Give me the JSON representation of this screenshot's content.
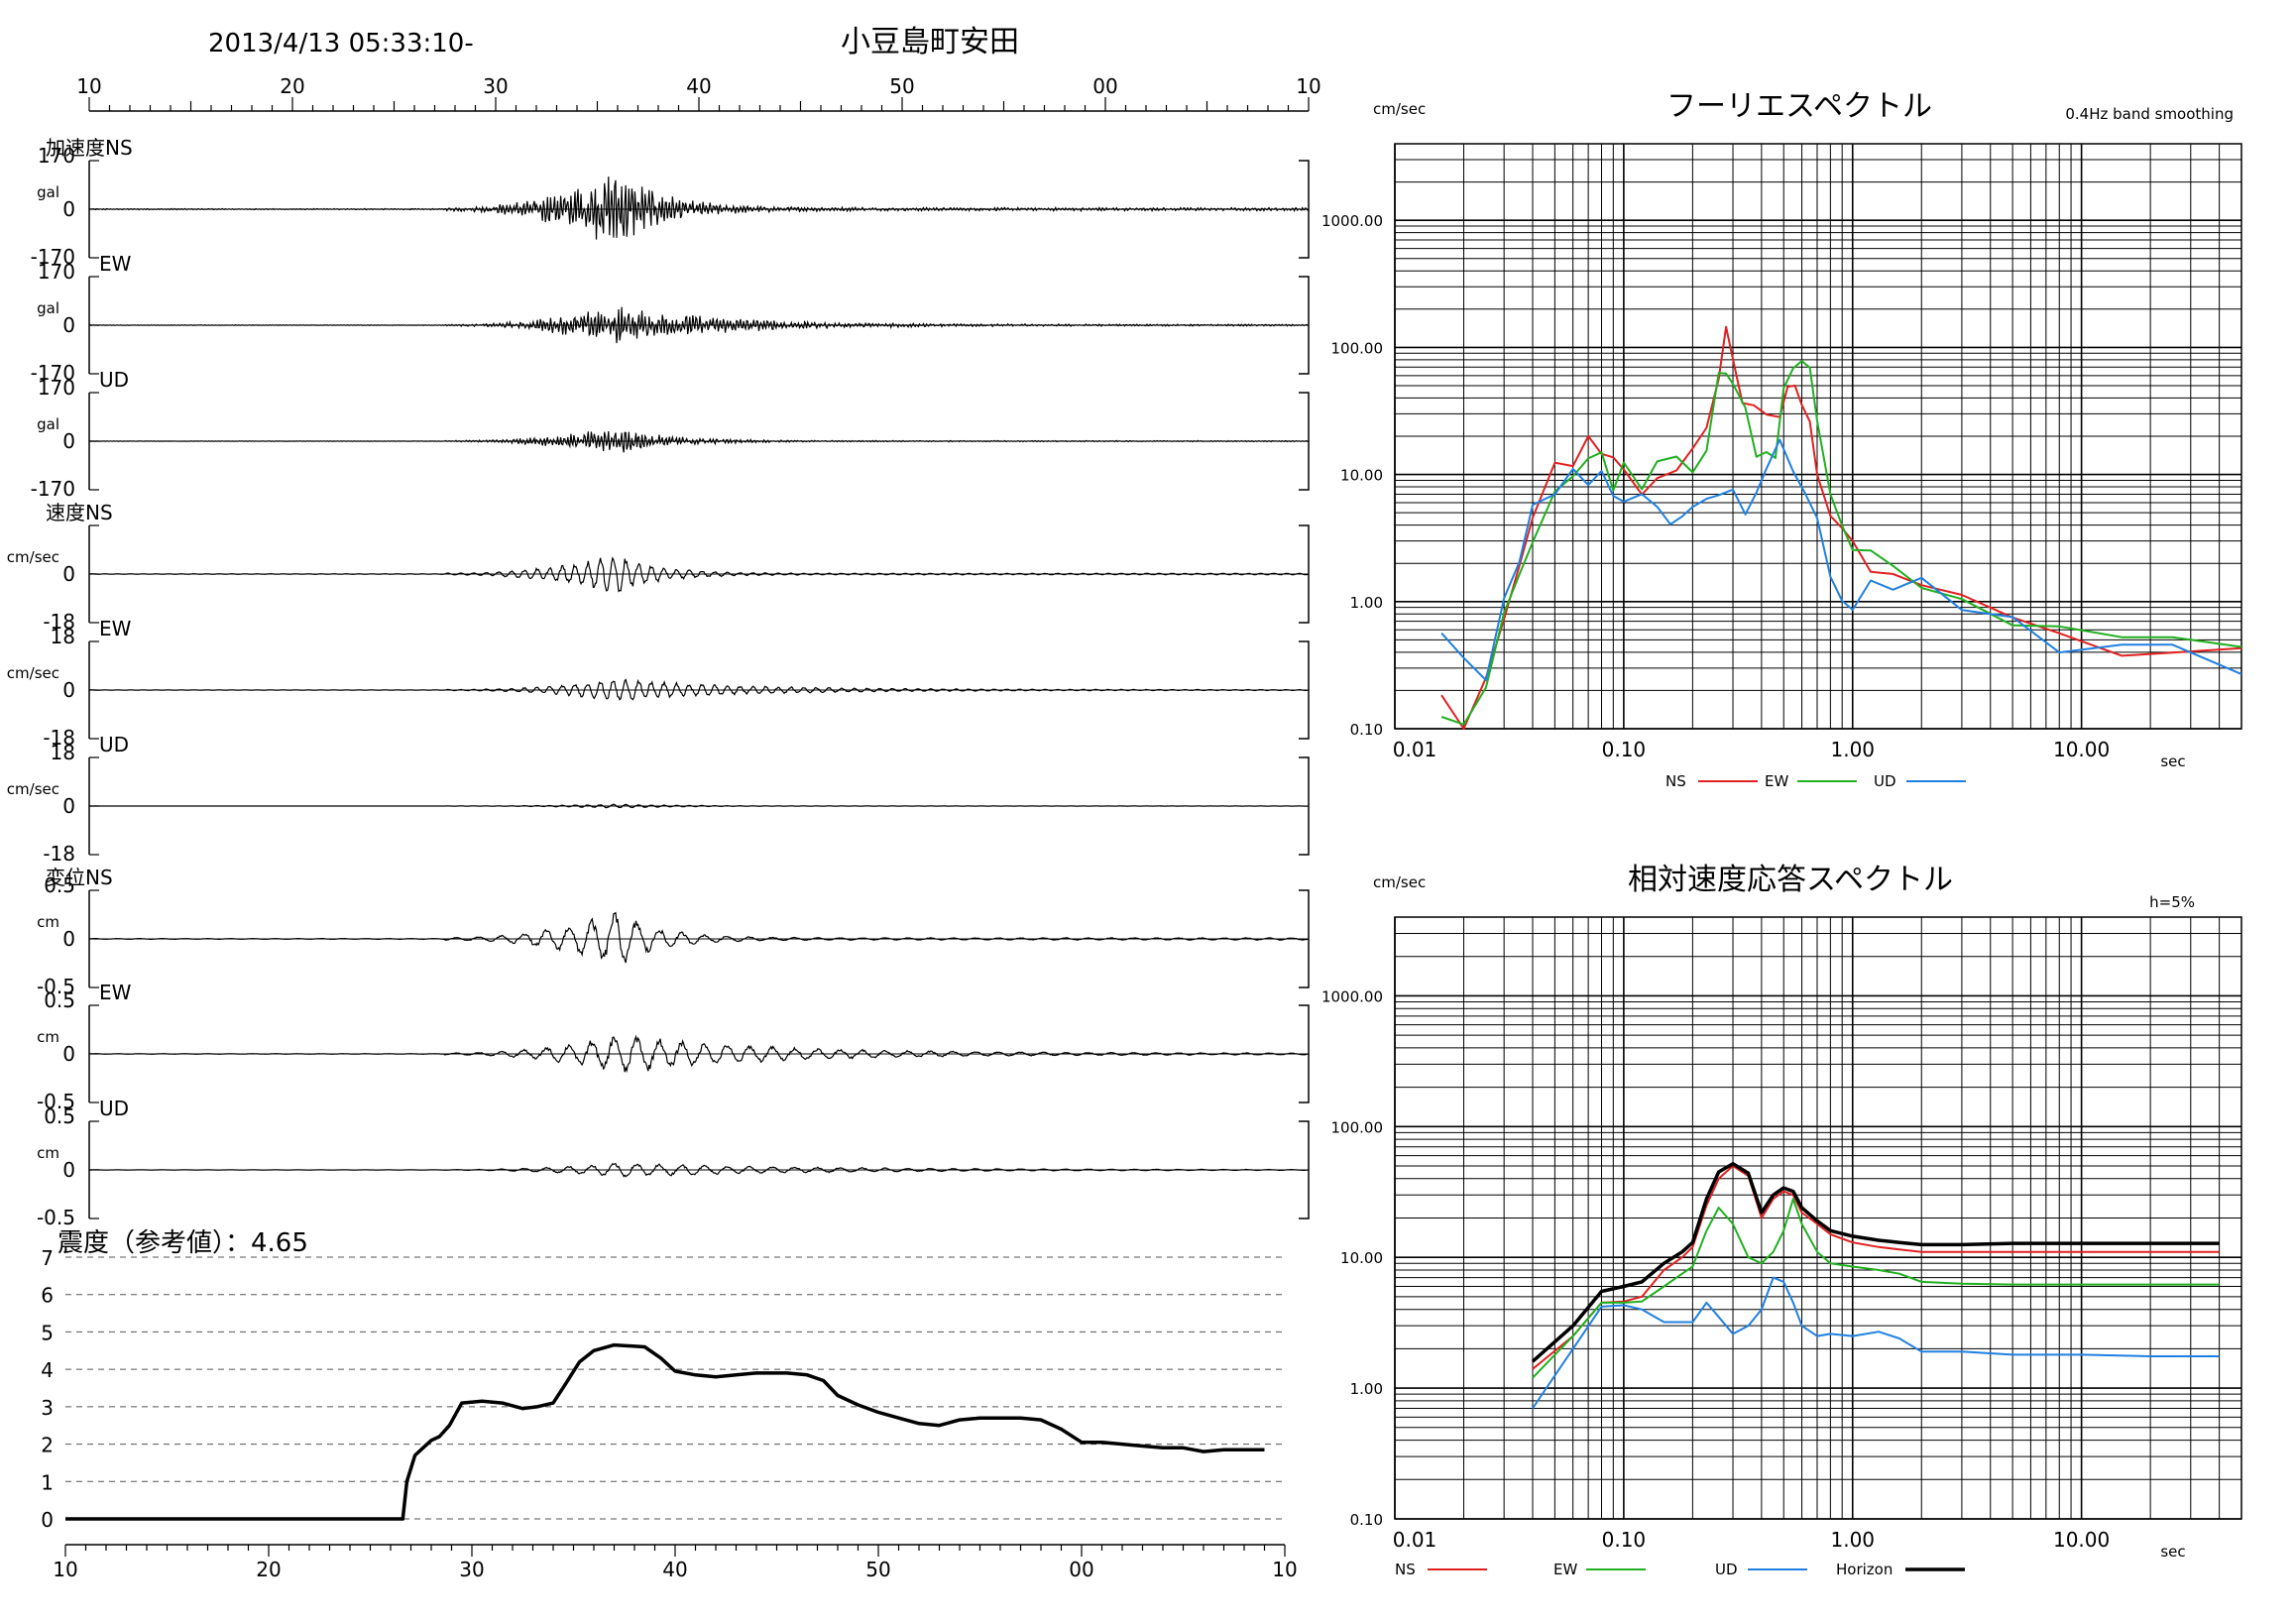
{
  "header": {
    "datetime": "2013/4/13 05:33:10-",
    "station": "小豆島町安田"
  },
  "chart_data": [
    {
      "type": "line",
      "id": "waveforms",
      "time_ticks": [
        "10",
        "20",
        "30",
        "40",
        "50",
        "00",
        "10"
      ],
      "time_axis_seconds": [
        10,
        70
      ],
      "groups": [
        {
          "label": "加速度",
          "unit": "gal",
          "panels": [
            {
              "component": "NS",
              "label": "加速度NS",
              "ymax": "170",
              "ymid": "0",
              "ymin": "-170",
              "peak_fraction": 0.72,
              "decay": 2.2
            },
            {
              "component": "EW",
              "label": "EW",
              "ymax": "170",
              "ymid": "0",
              "ymin": "-170",
              "peak_fraction": 0.36,
              "decay": 5.0
            },
            {
              "component": "UD",
              "label": "UD",
              "ymax": "170",
              "ymid": "0",
              "ymin": "-170",
              "peak_fraction": 0.25,
              "decay": 2.5
            }
          ]
        },
        {
          "label": "速度",
          "unit": "cm/sec",
          "panels": [
            {
              "component": "NS",
              "label": "速度NS",
              "ymax": "",
              "ymid": "0",
              "ymin": "-18",
              "peak_fraction": 0.5,
              "decay": 2.0
            },
            {
              "component": "EW",
              "label": "EW",
              "ymax": "18",
              "ymid": "0",
              "ymin": "-18",
              "peak_fraction": 0.28,
              "decay": 6.0
            },
            {
              "component": "UD",
              "label": "UD",
              "ymax": "18",
              "ymid": "0",
              "ymin": "-18",
              "peak_fraction": 0.05,
              "decay": 3.0
            }
          ]
        },
        {
          "label": "変位",
          "unit": "cm",
          "panels": [
            {
              "component": "NS",
              "label": "変位NS",
              "ymax": "0.5",
              "ymid": "0",
              "ymin": "-0.5",
              "peak_fraction": 0.7,
              "decay": 2.0
            },
            {
              "component": "EW",
              "label": "EW",
              "ymax": "0.5",
              "ymid": "0",
              "ymin": "-0.5",
              "peak_fraction": 0.5,
              "decay": 7.0
            },
            {
              "component": "UD",
              "label": "UD",
              "ymax": "0.5",
              "ymid": "0",
              "ymin": "-0.5",
              "peak_fraction": 0.18,
              "decay": 9.0
            }
          ]
        }
      ]
    },
    {
      "type": "line",
      "id": "seismic-intensity",
      "title": "震度（参考値）：4.65",
      "x_ticks": [
        "10",
        "20",
        "30",
        "40",
        "50",
        "00",
        "10"
      ],
      "xlim": [
        10,
        70
      ],
      "ylim": [
        0,
        7
      ],
      "y_ticks": [
        "0",
        "1",
        "2",
        "3",
        "4",
        "5",
        "6",
        "7"
      ],
      "grid": "dashed-horizontal",
      "series": [
        {
          "x": [
            10,
            26.6,
            26.8,
            27.2,
            27.6,
            28.0,
            28.4,
            28.9,
            29.5,
            30.5,
            31.5,
            32.5,
            33.2,
            34.0,
            34.6,
            35.3,
            36.0,
            37.0,
            38.5,
            39.3,
            40.0,
            41.0,
            42.0,
            43.0,
            44.0,
            45.5,
            46.5,
            47.3,
            48.0,
            49.0,
            50.0,
            51.0,
            52.0,
            53.0,
            54.0,
            55.0,
            56.0,
            57.0,
            58.0,
            59.0,
            60.0,
            61.0,
            62.0,
            63.0,
            64.0,
            65.0,
            66.0,
            67.0,
            68.0,
            69.0
          ],
          "y": [
            0,
            0,
            1.0,
            1.7,
            1.9,
            2.1,
            2.2,
            2.5,
            3.1,
            3.15,
            3.1,
            2.95,
            3.0,
            3.1,
            3.6,
            4.2,
            4.5,
            4.65,
            4.6,
            4.3,
            3.95,
            3.85,
            3.8,
            3.85,
            3.9,
            3.9,
            3.85,
            3.7,
            3.3,
            3.05,
            2.85,
            2.7,
            2.55,
            2.5,
            2.65,
            2.7,
            2.7,
            2.7,
            2.65,
            2.4,
            2.05,
            2.05,
            2.0,
            1.95,
            1.9,
            1.9,
            1.8,
            1.85,
            1.85,
            1.85
          ]
        }
      ]
    },
    {
      "type": "line",
      "id": "fourier-spectrum",
      "title": "フーリエスペクトル",
      "subtitle": "0.4Hz band smoothing",
      "ylabel": "cm/sec",
      "xlabel": "sec",
      "log_x": true,
      "log_y": true,
      "xlim": [
        0.01,
        50
      ],
      "ylim": [
        0.1,
        4000
      ],
      "x_tick_labels": [
        "0.01",
        "0.10",
        "1.00",
        "10.00"
      ],
      "y_tick_labels": [
        "0.10",
        "1.00",
        "10.00",
        "100.00",
        "1000.00"
      ],
      "grid": true,
      "legend": [
        {
          "name": "NS",
          "color": "#e02020"
        },
        {
          "name": "EW",
          "color": "#20b020"
        },
        {
          "name": "UD",
          "color": "#2080e0"
        }
      ],
      "series": [
        {
          "name": "NS",
          "color": "#e02020",
          "x": [
            0.016,
            0.02,
            0.025,
            0.03,
            0.035,
            0.04,
            0.05,
            0.06,
            0.07,
            0.08,
            0.09,
            0.1,
            0.12,
            0.14,
            0.17,
            0.2,
            0.23,
            0.26,
            0.28,
            0.3,
            0.33,
            0.37,
            0.42,
            0.48,
            0.52,
            0.56,
            0.6,
            0.65,
            0.7,
            0.8,
            0.9,
            1.0,
            1.2,
            1.5,
            2.0,
            3.0,
            5.0,
            8.0,
            15.0,
            25.0,
            50.0
          ],
          "y": [
            0.15,
            0.12,
            0.2,
            0.8,
            2.0,
            5.0,
            10.0,
            14.0,
            16.0,
            14.0,
            12.0,
            11.0,
            9.0,
            9.5,
            9.0,
            14.0,
            30.0,
            70.0,
            115.0,
            95.0,
            50.0,
            32.0,
            25.0,
            35.0,
            45.0,
            48.0,
            40.0,
            22.0,
            10.0,
            5.0,
            3.0,
            2.5,
            2.0,
            1.8,
            1.3,
            0.9,
            0.6,
            0.45,
            0.38,
            0.4,
            0.42
          ]
        },
        {
          "name": "EW",
          "color": "#20b020",
          "x": [
            0.016,
            0.02,
            0.025,
            0.03,
            0.035,
            0.04,
            0.05,
            0.06,
            0.07,
            0.08,
            0.09,
            0.1,
            0.12,
            0.14,
            0.17,
            0.2,
            0.23,
            0.26,
            0.28,
            0.3,
            0.34,
            0.38,
            0.42,
            0.46,
            0.5,
            0.55,
            0.6,
            0.65,
            0.7,
            0.8,
            0.9,
            1.0,
            1.2,
            1.5,
            2.0,
            3.0,
            5.0,
            8.0,
            15.0,
            25.0,
            50.0
          ],
          "y": [
            0.15,
            0.13,
            0.25,
            0.9,
            1.8,
            4.0,
            8.0,
            12.0,
            14.0,
            12.0,
            10.0,
            10.0,
            9.0,
            12.0,
            18.0,
            10.0,
            20.0,
            50.0,
            65.0,
            55.0,
            28.0,
            18.0,
            15.0,
            18.0,
            40.0,
            80.0,
            90.0,
            55.0,
            22.0,
            8.0,
            4.0,
            2.8,
            2.0,
            1.6,
            1.5,
            1.0,
            0.65,
            0.52,
            0.48,
            0.46,
            0.44
          ]
        },
        {
          "name": "UD",
          "color": "#2080e0",
          "x": [
            0.016,
            0.02,
            0.025,
            0.03,
            0.035,
            0.04,
            0.05,
            0.06,
            0.07,
            0.08,
            0.09,
            0.1,
            0.12,
            0.14,
            0.16,
            0.18,
            0.2,
            0.23,
            0.26,
            0.3,
            0.34,
            0.38,
            0.42,
            0.48,
            0.55,
            0.62,
            0.7,
            0.8,
            0.9,
            1.0,
            1.2,
            1.5,
            2.0,
            3.0,
            5.0,
            8.0,
            15.0,
            25.0,
            50.0
          ],
          "y": [
            0.7,
            0.3,
            0.25,
            1.0,
            2.5,
            5.0,
            7.0,
            10.0,
            11.0,
            10.0,
            8.0,
            7.0,
            6.5,
            5.5,
            4.8,
            4.5,
            5.0,
            6.5,
            7.0,
            6.0,
            5.0,
            9.0,
            10.0,
            15.0,
            12.0,
            7.0,
            4.0,
            2.0,
            1.2,
            1.0,
            1.2,
            1.5,
            1.3,
            0.9,
            0.6,
            0.45,
            0.38,
            0.37,
            0.37
          ]
        }
      ]
    },
    {
      "type": "line",
      "id": "velocity-response-spectrum",
      "title": "相対速度応答スペクトル",
      "annotation": "h=5%",
      "ylabel": "cm/sec",
      "xlabel": "sec",
      "log_x": true,
      "log_y": true,
      "xlim": [
        0.01,
        50
      ],
      "ylim": [
        0.1,
        4000
      ],
      "x_tick_labels": [
        "0.01",
        "0.10",
        "1.00",
        "10.00"
      ],
      "y_tick_labels": [
        "0.10",
        "1.00",
        "10.00",
        "100.00",
        "1000.00"
      ],
      "grid": true,
      "legend": [
        {
          "name": "NS",
          "color": "#e02020"
        },
        {
          "name": "EW",
          "color": "#20b020"
        },
        {
          "name": "UD",
          "color": "#2080e0"
        },
        {
          "name": "Horizon",
          "color": "#000000"
        }
      ],
      "series": [
        {
          "name": "NS",
          "color": "#e02020",
          "x": [
            0.04,
            0.06,
            0.08,
            0.1,
            0.12,
            0.15,
            0.18,
            0.2,
            0.23,
            0.26,
            0.3,
            0.35,
            0.4,
            0.45,
            0.5,
            0.55,
            0.6,
            0.7,
            0.8,
            1.0,
            1.3,
            1.6,
            2.0,
            3.0,
            5.0,
            10.0,
            20.0,
            40.0
          ],
          "y": [
            1.4,
            2.5,
            4.5,
            4.6,
            5.0,
            8.0,
            10.0,
            12.0,
            25.0,
            40.0,
            50.0,
            42.0,
            20.0,
            28.0,
            32.0,
            30.0,
            22.0,
            18.0,
            15.0,
            13.0,
            12.0,
            11.5,
            11.0,
            11.0,
            11.0,
            11.0,
            11.0,
            11.0
          ]
        },
        {
          "name": "EW",
          "color": "#20b020",
          "x": [
            0.04,
            0.06,
            0.08,
            0.1,
            0.12,
            0.15,
            0.18,
            0.2,
            0.23,
            0.26,
            0.3,
            0.35,
            0.4,
            0.45,
            0.5,
            0.55,
            0.6,
            0.7,
            0.8,
            1.0,
            1.3,
            1.6,
            2.0,
            3.0,
            5.0,
            10.0,
            20.0,
            40.0
          ],
          "y": [
            1.2,
            2.5,
            4.5,
            4.5,
            4.6,
            6.0,
            7.5,
            8.5,
            16.0,
            24.0,
            18.0,
            10.0,
            9.0,
            11.0,
            16.0,
            28.0,
            18.0,
            11.0,
            9.0,
            8.5,
            8.0,
            7.5,
            6.5,
            6.3,
            6.2,
            6.2,
            6.2,
            6.2
          ]
        },
        {
          "name": "UD",
          "color": "#2080e0",
          "x": [
            0.04,
            0.06,
            0.08,
            0.1,
            0.12,
            0.15,
            0.18,
            0.2,
            0.23,
            0.26,
            0.3,
            0.35,
            0.4,
            0.45,
            0.5,
            0.55,
            0.6,
            0.7,
            0.8,
            1.0,
            1.3,
            1.6,
            2.0,
            3.0,
            5.0,
            10.0,
            20.0,
            40.0
          ],
          "y": [
            0.7,
            2.0,
            4.2,
            4.3,
            4.0,
            3.2,
            3.2,
            3.2,
            4.5,
            3.5,
            2.6,
            3.0,
            4.0,
            7.0,
            6.5,
            4.5,
            3.0,
            2.5,
            2.6,
            2.5,
            2.7,
            2.4,
            1.9,
            1.9,
            1.8,
            1.8,
            1.75,
            1.75
          ]
        },
        {
          "name": "Horizon",
          "color": "#000000",
          "x": [
            0.04,
            0.06,
            0.08,
            0.1,
            0.12,
            0.15,
            0.18,
            0.2,
            0.23,
            0.26,
            0.3,
            0.35,
            0.4,
            0.45,
            0.5,
            0.55,
            0.6,
            0.7,
            0.8,
            1.0,
            1.3,
            1.6,
            2.0,
            3.0,
            5.0,
            10.0,
            20.0,
            40.0
          ],
          "y": [
            1.6,
            3.0,
            5.5,
            6.0,
            6.5,
            9.0,
            11.0,
            13.0,
            28.0,
            45.0,
            52.0,
            44.0,
            22.0,
            30.0,
            34.0,
            32.0,
            24.0,
            19.0,
            16.0,
            14.5,
            13.5,
            13.0,
            12.5,
            12.5,
            12.8,
            12.8,
            12.8,
            12.8
          ]
        }
      ]
    }
  ]
}
